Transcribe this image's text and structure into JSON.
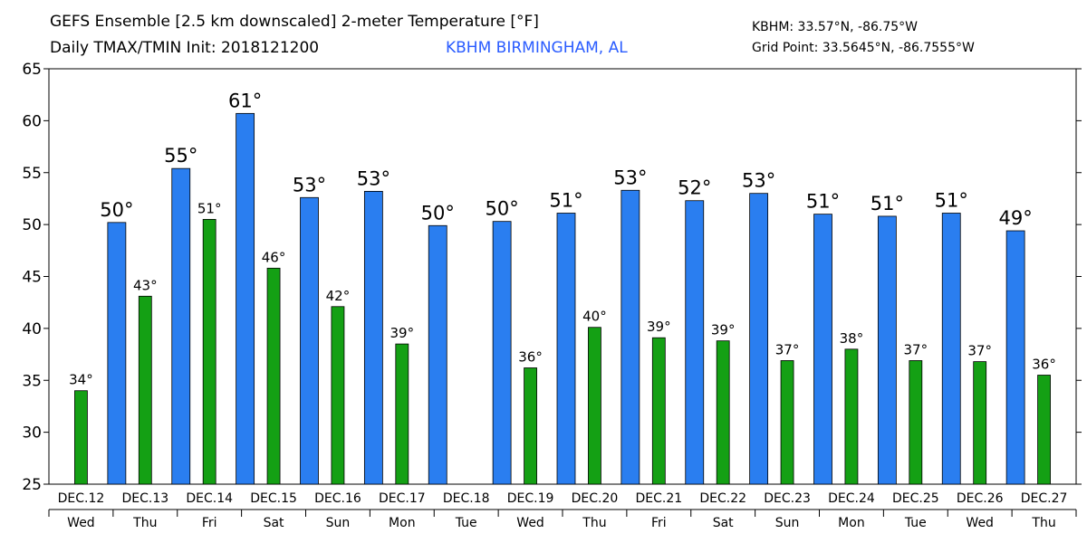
{
  "header": {
    "title_line1": "GEFS Ensemble [2.5 km downscaled] 2-meter Temperature [°F]",
    "title_line2": "Daily TMAX/TMIN Init: 2018121200",
    "station": "KBHM BIRMINGHAM, AL",
    "coord_line1": "KBHM: 33.57°N, -86.75°W",
    "coord_line2": "Grid Point: 33.5645°N, -86.7555°W"
  },
  "chart_data": {
    "type": "bar",
    "ylim": [
      25,
      65
    ],
    "yticks": [
      25,
      30,
      35,
      40,
      45,
      50,
      55,
      60,
      65
    ],
    "categories": [
      "DEC.12",
      "DEC.13",
      "DEC.14",
      "DEC.15",
      "DEC.16",
      "DEC.17",
      "DEC.18",
      "DEC.19",
      "DEC.20",
      "DEC.21",
      "DEC.22",
      "DEC.23",
      "DEC.24",
      "DEC.25",
      "DEC.26",
      "DEC.27"
    ],
    "weekdays": [
      "Wed",
      "Thu",
      "Fri",
      "Sat",
      "Sun",
      "Mon",
      "Tue",
      "Wed",
      "Thu",
      "Fri",
      "Sat",
      "Sun",
      "Mon",
      "Tue",
      "Wed",
      "Thu"
    ],
    "series": [
      {
        "values": [
          null,
          50.2,
          55.4,
          60.7,
          52.6,
          53.2,
          49.9,
          50.3,
          51.1,
          53.3,
          52.3,
          53.0,
          51.0,
          50.8,
          51.1,
          49.4
        ],
        "labels": [
          "",
          "50°",
          "55°",
          "61°",
          "53°",
          "53°",
          "50°",
          "50°",
          "51°",
          "53°",
          "52°",
          "53°",
          "51°",
          "51°",
          "51°",
          "49°"
        ],
        "color": "#2a7ef0"
      },
      {
        "values": [
          34.0,
          43.1,
          50.5,
          45.8,
          42.1,
          38.5,
          null,
          36.2,
          40.1,
          39.1,
          38.8,
          36.9,
          38.0,
          36.9,
          36.8,
          35.5
        ],
        "labels": [
          "34°",
          "43°",
          "51°",
          "46°",
          "42°",
          "39°",
          "",
          "36°",
          "40°",
          "39°",
          "39°",
          "37°",
          "38°",
          "37°",
          "37°",
          "36°"
        ],
        "color": "#14a014"
      }
    ],
    "grid": false,
    "legend": "none"
  }
}
